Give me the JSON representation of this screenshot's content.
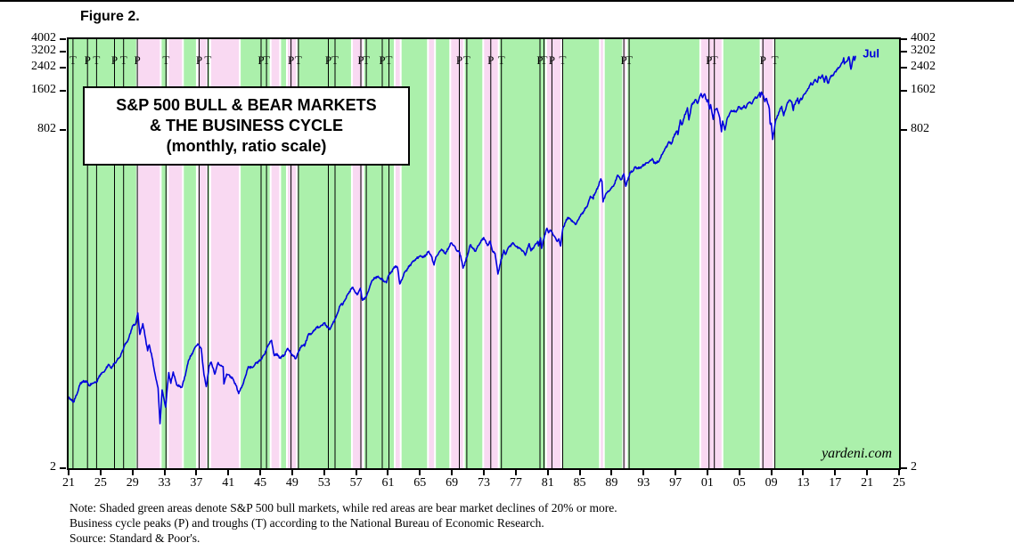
{
  "figure_label": "Figure 2.",
  "notes": {
    "line1": "Note: Shaded green areas denote S&P 500 bull markets, while red areas are bear market declines of 20% or more.",
    "line2": "Business cycle peaks (P) and troughs (T) according to the National Bureau of Economic Research.",
    "line3": "Source: Standard & Poor's."
  },
  "chart_data": {
    "type": "line",
    "title": "S&P 500 BULL & BEAR MARKETS",
    "title_line2": "& THE BUSINESS CYCLE",
    "title_line3": "(monthly, ratio scale)",
    "series_name": "S&P 500",
    "y_scale": "log",
    "x_range": [
      1921,
      2025
    ],
    "y_range": [
      2,
      4002
    ],
    "y_ticks": [
      "4002",
      "3202",
      "2402",
      "1602",
      "802",
      "2"
    ],
    "x_ticks": [
      1921,
      1925,
      1929,
      1933,
      1937,
      1941,
      1945,
      1949,
      1953,
      1957,
      1961,
      1965,
      1969,
      1973,
      1977,
      1981,
      1985,
      1989,
      1993,
      1997,
      2001,
      2005,
      2009,
      2013,
      2017,
      2021,
      2025
    ],
    "x_tick_labels": [
      "21",
      "25",
      "29",
      "33",
      "37",
      "41",
      "45",
      "49",
      "53",
      "57",
      "61",
      "65",
      "69",
      "73",
      "77",
      "81",
      "85",
      "89",
      "93",
      "97",
      "01",
      "05",
      "09",
      "13",
      "17",
      "21",
      "25"
    ],
    "last_point_label": "Jul",
    "watermark": "yardeni.com",
    "colors": {
      "bull_band": "#abf0ab",
      "bear_band": "#f9d9f2",
      "line": "#0000dd",
      "frame": "#000000"
    },
    "bear_markets": [
      [
        1929.68,
        1932.42
      ],
      [
        1933.54,
        1935.2
      ],
      [
        1937.17,
        1938.25
      ],
      [
        1938.85,
        1942.32
      ],
      [
        1946.41,
        1947.38
      ],
      [
        1948.45,
        1949.45
      ],
      [
        1956.58,
        1957.8
      ],
      [
        1961.95,
        1962.48
      ],
      [
        1966.11,
        1966.77
      ],
      [
        1968.91,
        1970.4
      ],
      [
        1973.03,
        1974.75
      ],
      [
        1980.91,
        1982.61
      ],
      [
        1987.65,
        1987.92
      ],
      [
        1990.54,
        1990.78
      ],
      [
        2000.22,
        2002.77
      ],
      [
        2007.77,
        2009.18
      ]
    ],
    "business_cycle": [
      {
        "year": 1921.55,
        "label": "T"
      },
      {
        "year": 1923.37,
        "label": "P"
      },
      {
        "year": 1924.5,
        "label": "T"
      },
      {
        "year": 1926.75,
        "label": "P"
      },
      {
        "year": 1927.88,
        "label": "T"
      },
      {
        "year": 1929.6,
        "label": "P"
      },
      {
        "year": 1933.2,
        "label": "T"
      },
      {
        "year": 1937.35,
        "label": "P"
      },
      {
        "year": 1938.45,
        "label": "T"
      },
      {
        "year": 1945.1,
        "label": "P"
      },
      {
        "year": 1945.78,
        "label": "T"
      },
      {
        "year": 1948.85,
        "label": "P"
      },
      {
        "year": 1949.78,
        "label": "T"
      },
      {
        "year": 1953.53,
        "label": "P"
      },
      {
        "year": 1954.37,
        "label": "T"
      },
      {
        "year": 1957.6,
        "label": "P"
      },
      {
        "year": 1958.28,
        "label": "T"
      },
      {
        "year": 1960.28,
        "label": "P"
      },
      {
        "year": 1961.12,
        "label": "T"
      },
      {
        "year": 1969.93,
        "label": "P"
      },
      {
        "year": 1970.87,
        "label": "T"
      },
      {
        "year": 1973.87,
        "label": "P"
      },
      {
        "year": 1975.2,
        "label": "T"
      },
      {
        "year": 1980.03,
        "label": "P"
      },
      {
        "year": 1980.53,
        "label": "T"
      },
      {
        "year": 1981.53,
        "label": "P"
      },
      {
        "year": 1982.87,
        "label": "T"
      },
      {
        "year": 1990.53,
        "label": "P"
      },
      {
        "year": 1991.2,
        "label": "T"
      },
      {
        "year": 2001.2,
        "label": "P"
      },
      {
        "year": 2001.87,
        "label": "T"
      },
      {
        "year": 2007.95,
        "label": "P"
      },
      {
        "year": 2009.45,
        "label": "T"
      }
    ],
    "points": [
      [
        1921.0,
        7.1
      ],
      [
        1921.3,
        6.7
      ],
      [
        1921.6,
        6.45
      ],
      [
        1922.0,
        7.3
      ],
      [
        1922.5,
        9.1
      ],
      [
        1923.2,
        9.4
      ],
      [
        1923.6,
        8.6
      ],
      [
        1924.0,
        9.0
      ],
      [
        1924.5,
        9.2
      ],
      [
        1925.0,
        10.6
      ],
      [
        1925.5,
        11.1
      ],
      [
        1926.0,
        12.6
      ],
      [
        1926.3,
        11.8
      ],
      [
        1926.8,
        12.9
      ],
      [
        1927.0,
        13.4
      ],
      [
        1927.5,
        14.6
      ],
      [
        1928.0,
        17.5
      ],
      [
        1928.5,
        19.7
      ],
      [
        1929.0,
        24.9
      ],
      [
        1929.4,
        25.8
      ],
      [
        1929.67,
        31.3
      ],
      [
        1929.92,
        21.4
      ],
      [
        1930.3,
        25.9
      ],
      [
        1930.9,
        16.0
      ],
      [
        1931.1,
        17.8
      ],
      [
        1931.45,
        14.3
      ],
      [
        1931.75,
        11.2
      ],
      [
        1931.95,
        9.7
      ],
      [
        1932.2,
        8.3
      ],
      [
        1932.45,
        4.4
      ],
      [
        1932.7,
        8.0
      ],
      [
        1932.95,
        6.8
      ],
      [
        1933.15,
        5.9
      ],
      [
        1933.54,
        10.9
      ],
      [
        1933.8,
        9.0
      ],
      [
        1934.1,
        11.0
      ],
      [
        1934.55,
        8.7
      ],
      [
        1935.2,
        8.4
      ],
      [
        1935.7,
        11.0
      ],
      [
        1936.0,
        13.4
      ],
      [
        1936.9,
        17.2
      ],
      [
        1937.17,
        18.1
      ],
      [
        1937.6,
        16.7
      ],
      [
        1937.95,
        10.5
      ],
      [
        1938.24,
        8.5
      ],
      [
        1938.6,
        12.2
      ],
      [
        1938.85,
        13.1
      ],
      [
        1939.3,
        10.6
      ],
      [
        1939.72,
        13.0
      ],
      [
        1940.0,
        12.3
      ],
      [
        1940.35,
        12.1
      ],
      [
        1940.45,
        8.9
      ],
      [
        1940.8,
        10.6
      ],
      [
        1941.0,
        10.5
      ],
      [
        1941.55,
        9.8
      ],
      [
        1941.95,
        8.7
      ],
      [
        1942.3,
        7.5
      ],
      [
        1942.9,
        9.1
      ],
      [
        1943.5,
        12.1
      ],
      [
        1944.0,
        11.9
      ],
      [
        1944.5,
        12.9
      ],
      [
        1945.0,
        13.5
      ],
      [
        1945.5,
        15.0
      ],
      [
        1946.05,
        18.0
      ],
      [
        1946.41,
        19.3
      ],
      [
        1946.75,
        14.7
      ],
      [
        1947.1,
        15.2
      ],
      [
        1947.38,
        14.1
      ],
      [
        1948.0,
        14.8
      ],
      [
        1948.44,
        16.7
      ],
      [
        1948.9,
        15.2
      ],
      [
        1949.44,
        13.9
      ],
      [
        1950.0,
        16.9
      ],
      [
        1950.5,
        18.0
      ],
      [
        1950.55,
        17.4
      ],
      [
        1951.0,
        21.2
      ],
      [
        1951.5,
        21.9
      ],
      [
        1952.0,
        24.2
      ],
      [
        1952.5,
        24.5
      ],
      [
        1953.0,
        26.2
      ],
      [
        1953.7,
        23.3
      ],
      [
        1954.0,
        25.5
      ],
      [
        1954.5,
        29.2
      ],
      [
        1955.0,
        35.6
      ],
      [
        1955.2,
        37.0
      ],
      [
        1955.3,
        36.0
      ],
      [
        1956.0,
        44.2
      ],
      [
        1956.58,
        49.4
      ],
      [
        1956.9,
        45.1
      ],
      [
        1957.2,
        43.5
      ],
      [
        1957.55,
        48.5
      ],
      [
        1957.8,
        39.2
      ],
      [
        1958.3,
        42.1
      ],
      [
        1959.0,
        55.6
      ],
      [
        1959.6,
        59.7
      ],
      [
        1960.0,
        58.0
      ],
      [
        1960.8,
        53.4
      ],
      [
        1961.0,
        59.7
      ],
      [
        1961.93,
        72.0
      ],
      [
        1962.2,
        69.6
      ],
      [
        1962.48,
        52.3
      ],
      [
        1962.75,
        56.3
      ],
      [
        1963.0,
        63.1
      ],
      [
        1963.5,
        69.1
      ],
      [
        1964.0,
        76.5
      ],
      [
        1964.5,
        81.7
      ],
      [
        1965.0,
        86.1
      ],
      [
        1965.5,
        84.1
      ],
      [
        1966.1,
        93.3
      ],
      [
        1966.4,
        86.1
      ],
      [
        1966.76,
        73.2
      ],
      [
        1967.0,
        84.5
      ],
      [
        1967.7,
        96.7
      ],
      [
        1968.2,
        89.1
      ],
      [
        1968.9,
        108.4
      ],
      [
        1969.4,
        101.3
      ],
      [
        1969.6,
        94.5
      ],
      [
        1969.95,
        92.1
      ],
      [
        1970.1,
        86.0
      ],
      [
        1970.4,
        69.3
      ],
      [
        1970.9,
        84.3
      ],
      [
        1971.3,
        104.8
      ],
      [
        1971.6,
        99.0
      ],
      [
        1971.9,
        93.4
      ],
      [
        1972.5,
        107.7
      ],
      [
        1972.98,
        119.1
      ],
      [
        1973.3,
        107.9
      ],
      [
        1973.55,
        104.3
      ],
      [
        1973.8,
        111.4
      ],
      [
        1974.1,
        93.0
      ],
      [
        1974.4,
        90.3
      ],
      [
        1974.76,
        62.3
      ],
      [
        1975.0,
        72.6
      ],
      [
        1975.5,
        95.2
      ],
      [
        1975.7,
        88.2
      ],
      [
        1976.1,
        100.9
      ],
      [
        1976.7,
        107.8
      ],
      [
        1977.0,
        102.0
      ],
      [
        1977.5,
        98.9
      ],
      [
        1977.95,
        93.0
      ],
      [
        1978.2,
        86.9
      ],
      [
        1978.68,
        106.99
      ],
      [
        1978.9,
        94.1
      ],
      [
        1979.3,
        101.6
      ],
      [
        1979.75,
        111.3
      ],
      [
        1979.85,
        102.7
      ],
      [
        1980.1,
        118.4
      ],
      [
        1980.24,
        98.2
      ],
      [
        1980.6,
        123.4
      ],
      [
        1980.9,
        140.5
      ],
      [
        1981.1,
        129.6
      ],
      [
        1981.3,
        136.0
      ],
      [
        1981.55,
        130.9
      ],
      [
        1981.75,
        122.8
      ],
      [
        1982.0,
        117.3
      ],
      [
        1982.2,
        111.0
      ],
      [
        1982.4,
        116.4
      ],
      [
        1982.62,
        102.4
      ],
      [
        1982.9,
        140.6
      ],
      [
        1983.5,
        170.0
      ],
      [
        1983.9,
        163.6
      ],
      [
        1984.2,
        157.1
      ],
      [
        1984.55,
        150.6
      ],
      [
        1985.0,
        171.6
      ],
      [
        1985.5,
        189.6
      ],
      [
        1986.0,
        211.8
      ],
      [
        1986.35,
        247.4
      ],
      [
        1986.7,
        236.1
      ],
      [
        1986.75,
        252.9
      ],
      [
        1987.0,
        264.5
      ],
      [
        1987.3,
        292.5
      ],
      [
        1987.65,
        336.8
      ],
      [
        1987.8,
        321.8
      ],
      [
        1987.93,
        223.9
      ],
      [
        1988.3,
        258.9
      ],
      [
        1988.6,
        270.7
      ],
      [
        1988.85,
        277.7
      ],
      [
        1989.4,
        309.6
      ],
      [
        1989.75,
        359.8
      ],
      [
        1990.05,
        339.9
      ],
      [
        1990.2,
        332.2
      ],
      [
        1990.53,
        368.9
      ],
      [
        1990.78,
        295.5
      ],
      [
        1991.1,
        343.9
      ],
      [
        1991.3,
        375.2
      ],
      [
        1991.7,
        387.8
      ],
      [
        1991.95,
        417.0
      ],
      [
        1992.3,
        403.7
      ],
      [
        1992.75,
        417.8
      ],
      [
        1993.1,
        435.2
      ],
      [
        1993.5,
        448.1
      ],
      [
        1993.95,
        466.4
      ],
      [
        1994.1,
        482.0
      ],
      [
        1994.3,
        445.8
      ],
      [
        1994.9,
        455.2
      ],
      [
        1995.0,
        470.4
      ],
      [
        1995.5,
        544.8
      ],
      [
        1996.0,
        615.9
      ],
      [
        1996.1,
        640.4
      ],
      [
        1996.55,
        635.3
      ],
      [
        1996.9,
        744.4
      ],
      [
        1997.2,
        786.2
      ],
      [
        1997.3,
        737.7
      ],
      [
        1997.6,
        954.3
      ],
      [
        1997.8,
        876.0
      ],
      [
        1998.0,
        963.4
      ],
      [
        1998.5,
        1186.8
      ],
      [
        1998.68,
        957.3
      ],
      [
        1999.0,
        1229.2
      ],
      [
        1999.5,
        1372.7
      ],
      [
        1999.77,
        1282.7
      ],
      [
        2000.0,
        1425.6
      ],
      [
        2000.2,
        1527.5
      ],
      [
        2000.4,
        1420.6
      ],
      [
        2000.65,
        1517.7
      ],
      [
        2000.95,
        1320.3
      ],
      [
        2001.1,
        1366.0
      ],
      [
        2001.25,
        1160.3
      ],
      [
        2001.4,
        1255.8
      ],
      [
        2001.72,
        965.8
      ],
      [
        2001.95,
        1144.9
      ],
      [
        2002.2,
        1172.5
      ],
      [
        2002.55,
        989.8
      ],
      [
        2002.76,
        776.8
      ],
      [
        2002.9,
        936.3
      ],
      [
        2003.2,
        800.7
      ],
      [
        2003.5,
        988.6
      ],
      [
        2004.0,
        1131.1
      ],
      [
        2004.6,
        1101.7
      ],
      [
        2004.95,
        1211.9
      ],
      [
        2005.3,
        1156.9
      ],
      [
        2005.6,
        1234.2
      ],
      [
        2005.8,
        1177.8
      ],
      [
        2006.05,
        1280.1
      ],
      [
        2006.35,
        1310.6
      ],
      [
        2006.55,
        1270.9
      ],
      [
        2007.0,
        1438.2
      ],
      [
        2007.2,
        1406.8
      ],
      [
        2007.55,
        1553.1
      ],
      [
        2007.62,
        1433.1
      ],
      [
        2007.77,
        1565.2
      ],
      [
        2008.0,
        1468.4
      ],
      [
        2008.2,
        1322.7
      ],
      [
        2008.4,
        1400.4
      ],
      [
        2008.55,
        1280.0
      ],
      [
        2008.75,
        1166.4
      ],
      [
        2008.85,
        896.2
      ],
      [
        2009.0,
        903.3
      ],
      [
        2009.18,
        676.5
      ],
      [
        2009.5,
        919.3
      ],
      [
        2009.95,
        1095.6
      ],
      [
        2010.3,
        1217.3
      ],
      [
        2010.55,
        1030.7
      ],
      [
        2010.95,
        1257.6
      ],
      [
        2011.3,
        1363.6
      ],
      [
        2011.55,
        1320.6
      ],
      [
        2011.76,
        1131.4
      ],
      [
        2011.85,
        1253.3
      ],
      [
        2011.95,
        1257.6
      ],
      [
        2012.3,
        1408.5
      ],
      [
        2012.45,
        1278.0
      ],
      [
        2012.7,
        1406.6
      ],
      [
        2012.85,
        1380.0
      ],
      [
        2013.0,
        1480.4
      ],
      [
        2013.5,
        1606.3
      ],
      [
        2013.95,
        1848.4
      ],
      [
        2014.1,
        1782.6
      ],
      [
        2014.5,
        1960.2
      ],
      [
        2014.78,
        1862.5
      ],
      [
        2014.95,
        2058.9
      ],
      [
        2015.15,
        1994.9
      ],
      [
        2015.4,
        2123.5
      ],
      [
        2015.65,
        1867.6
      ],
      [
        2015.85,
        2080.4
      ],
      [
        2016.1,
        1829.1
      ],
      [
        2016.5,
        2098.9
      ],
      [
        2016.8,
        2126.4
      ],
      [
        2016.95,
        2238.8
      ],
      [
        2017.5,
        2423.4
      ],
      [
        2017.95,
        2673.6
      ],
      [
        2018.07,
        2872.9
      ],
      [
        2018.15,
        2581.0
      ],
      [
        2018.5,
        2718.4
      ],
      [
        2018.72,
        2930.8
      ],
      [
        2018.97,
        2351.1
      ],
      [
        2019.3,
        2945.8
      ],
      [
        2019.42,
        2752.1
      ],
      [
        2019.55,
        2980.4
      ]
    ]
  }
}
